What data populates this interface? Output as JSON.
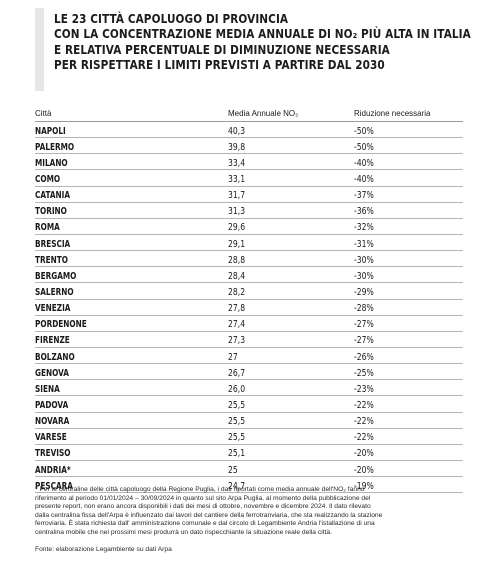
{
  "title": {
    "lines": [
      "LE 23 CITTÀ CAPOLUOGO DI PROVINCIA",
      "CON LA CONCENTRAZIONE MEDIA ANNUALE DI NO₂ PIÙ ALTA IN ITALIA",
      "E RELATIVA PERCENTUALE DI DIMINUZIONE NECESSARIA",
      "PER RISPETTARE I LIMITI PREVISTI A PARTIRE DAL 2030"
    ]
  },
  "table": {
    "headers": [
      "Città",
      "Media Annuale NO₂",
      "Riduzione necessaria"
    ],
    "rows": [
      {
        "city": "NAPOLI",
        "media": "40,3",
        "riduzione": "-50%"
      },
      {
        "city": "PALERMO",
        "media": "39,8",
        "riduzione": "-50%"
      },
      {
        "city": "MILANO",
        "media": "33,4",
        "riduzione": "-40%"
      },
      {
        "city": "COMO",
        "media": "33,1",
        "riduzione": "-40%"
      },
      {
        "city": "CATANIA",
        "media": "31,7",
        "riduzione": "-37%"
      },
      {
        "city": "TORINO",
        "media": "31,3",
        "riduzione": "-36%"
      },
      {
        "city": "ROMA",
        "media": "29,6",
        "riduzione": "-32%"
      },
      {
        "city": "BRESCIA",
        "media": "29,1",
        "riduzione": "-31%"
      },
      {
        "city": "TRENTO",
        "media": "28,8",
        "riduzione": "-30%"
      },
      {
        "city": "BERGAMO",
        "media": "28,4",
        "riduzione": "-30%"
      },
      {
        "city": "SALERNO",
        "media": "28,2",
        "riduzione": "-29%"
      },
      {
        "city": "VENEZIA",
        "media": "27,8",
        "riduzione": "-28%"
      },
      {
        "city": "PORDENONE",
        "media": "27,4",
        "riduzione": "-27%"
      },
      {
        "city": "FIRENZE",
        "media": "27,3",
        "riduzione": "-27%"
      },
      {
        "city": "BOLZANO",
        "media": "27",
        "riduzione": "-26%"
      },
      {
        "city": "GENOVA",
        "media": "26,7",
        "riduzione": "-25%"
      },
      {
        "city": "SIENA",
        "media": "26,0",
        "riduzione": "-23%"
      },
      {
        "city": "PADOVA",
        "media": "25,5",
        "riduzione": "-22%"
      },
      {
        "city": "NOVARA",
        "media": "25,5",
        "riduzione": "-22%"
      },
      {
        "city": "VARESE",
        "media": "25,5",
        "riduzione": "-22%"
      },
      {
        "city": "TREVISO",
        "media": "25,1",
        "riduzione": "-20%"
      },
      {
        "city": "ANDRIA*",
        "media": "25",
        "riduzione": "-20%"
      },
      {
        "city": "PESCARA",
        "media": "24,7",
        "riduzione": "-19%"
      }
    ]
  },
  "footnote": {
    "lines": [
      "* Per le centraline delle città capoluogo della Regione Puglia, i dati riportati come media annuale dell'NO₂ fanno",
      "riferimento al periodo 01/01/2024 – 30/09/2024 in quanto sul sito Arpa Puglia, al momento della pubblicazione del",
      "presente report, non erano ancora disponibili i dati dei mesi di ottobre, novembre e dicembre 2024. Il dato rilevato",
      "dalla centralina fissa dell'Arpa è influenzato dai lavori del cantiere della ferrotranviaria, che sta realizzando la stazione",
      "ferroviaria. È stata richiesta dall' amministrazione comunale e dal circolo di Legambiente Andria l'istallazione di una",
      "centralina mobile che nei prossimi mesi produrrà un dato rispecchiante la situazione reale della città."
    ]
  },
  "source": "Fonte: elaborazione Legambiente su dati Arpa"
}
